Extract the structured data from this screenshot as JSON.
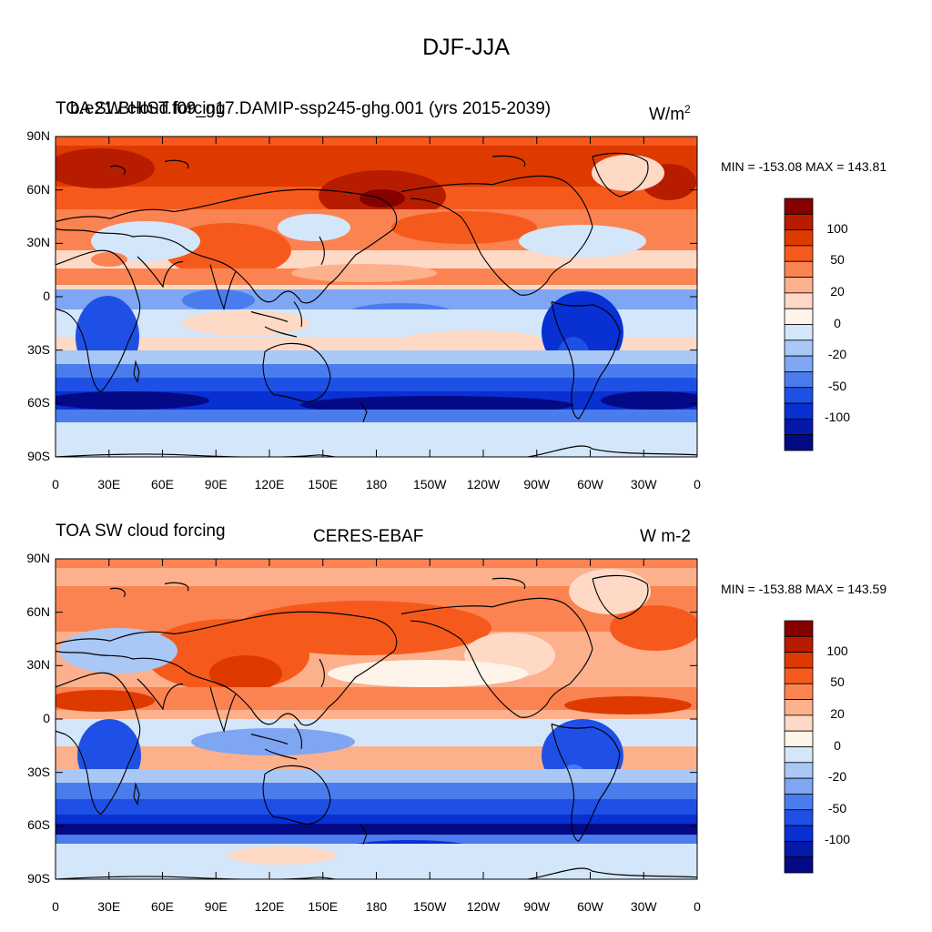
{
  "main_title": "DJF-JJA",
  "panels": [
    {
      "left_title": "TOA SW cloud forcing",
      "center_title": "b.e21.BHIST.f09_g17.DAMIP-ssp245-ghg.001 (yrs 2015-2039)",
      "units": "W/m",
      "units_sup": "2",
      "min_max": "MIN = -153.08 MAX = 143.81"
    },
    {
      "left_title": "TOA SW cloud forcing",
      "center_title": "CERES-EBAF",
      "units": "W m-2",
      "units_sup": "",
      "min_max": "MIN = -153.88 MAX = 143.59"
    }
  ],
  "lat_labels": [
    "90N",
    "60N",
    "30N",
    "0",
    "30S",
    "60S",
    "90S"
  ],
  "lon_labels": [
    "0",
    "30E",
    "60E",
    "90E",
    "120E",
    "150E",
    "180",
    "150W",
    "120W",
    "90W",
    "60W",
    "30W",
    "0"
  ],
  "colorbar": {
    "colors": [
      "#860000",
      "#b71c00",
      "#de3a00",
      "#f55a1c",
      "#fb8352",
      "#fdb08c",
      "#fdd9c6",
      "#fff4ea",
      "#d4e6fa",
      "#aac8f6",
      "#7ea6f2",
      "#4b7ced",
      "#1f50e6",
      "#0830d2",
      "#0419a8",
      "#040a85"
    ],
    "labels": [
      "100",
      "50",
      "20",
      "0",
      "-20",
      "-50",
      "-100"
    ]
  }
}
